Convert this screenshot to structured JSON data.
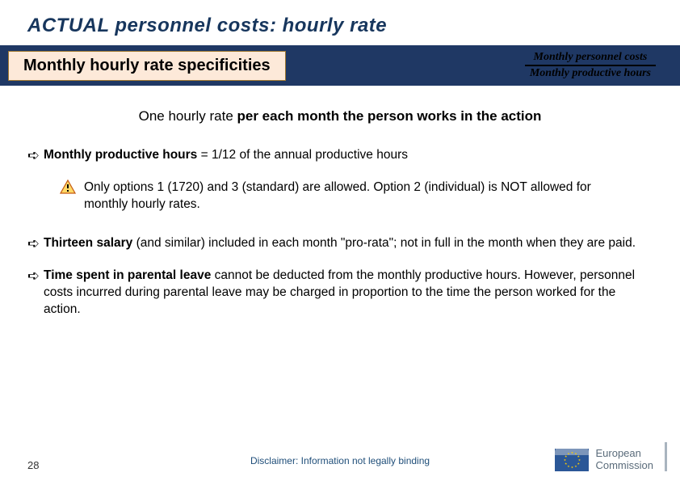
{
  "title": "ACTUAL personnel costs: hourly rate",
  "subtitle": "Monthly hourly rate specificities",
  "fraction": {
    "numerator": "Monthly personnel costs",
    "denominator": "Monthly productive hours"
  },
  "main_statement": {
    "prefix": "One hourly rate ",
    "bold": "per each month the person works in the action"
  },
  "bullets": [
    {
      "bold": "Monthly productive hours",
      "rest": " =  1/12 of the annual productive hours"
    }
  ],
  "warning": "Only options 1 (1720) and 3 (standard) are allowed. Option 2 (individual) is NOT allowed for monthly hourly rates.",
  "bullet2": {
    "bold": "Thirteen salary",
    "rest": " (and similar) included in each month \"pro-rata\"; not in full in the month when they are paid."
  },
  "bullet3": {
    "bold": "Time spent in parental leave",
    "rest": " cannot be deducted from the monthly productive hours. However, personnel costs incurred during parental leave may be charged in proportion to the time the person worked for the action."
  },
  "page_number": "28",
  "disclaimer": "Disclaimer: Information not legally binding",
  "ec_logo": {
    "line1": "European",
    "line2": "Commission"
  },
  "colors": {
    "title": "#17365d",
    "header_bg": "#1f3864",
    "subtitle_bg": "#fde9d9",
    "subtitle_border": "#a07830",
    "disclaimer": "#1f4e79"
  }
}
